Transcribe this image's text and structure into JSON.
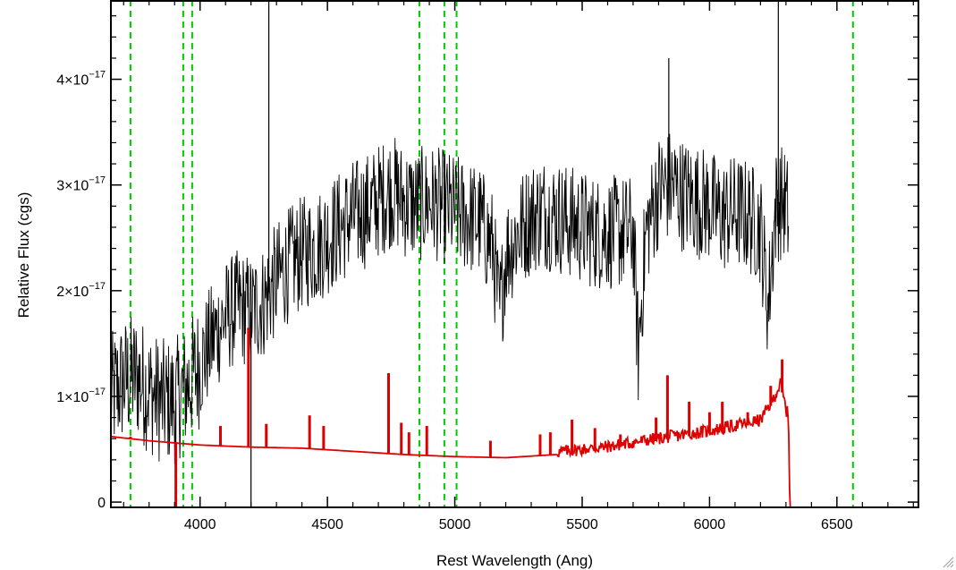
{
  "chart_data": {
    "type": "line",
    "title": "",
    "xlabel": "Rest Wavelength (Ang)",
    "ylabel": "Relative Flux (cgs)",
    "xlim": [
      3650,
      6820
    ],
    "ylim": [
      -0.05,
      4.75
    ],
    "y_scale_exponent": -17,
    "x_ticks": [
      4000,
      4500,
      5000,
      5500,
      6000,
      6500
    ],
    "x_tick_labels": [
      "4000",
      "4500",
      "5000",
      "5500",
      "6000",
      "6500"
    ],
    "y_ticks": [
      0,
      1,
      2,
      3,
      4
    ],
    "y_tick_labels": [
      {
        "value": 0,
        "mantissa": "0",
        "exponent": ""
      },
      {
        "value": 1,
        "mantissa": "1×10",
        "exponent": "−17"
      },
      {
        "value": 2,
        "mantissa": "2×10",
        "exponent": "−17"
      },
      {
        "value": 3,
        "mantissa": "3×10",
        "exponent": "−17"
      },
      {
        "value": 4,
        "mantissa": "4×10",
        "exponent": "−17"
      }
    ],
    "grid": false,
    "reference_lines": {
      "color": "#00cc00",
      "style": "dashed",
      "x": [
        3727,
        3934,
        3969,
        4861,
        4959,
        5007,
        6563
      ]
    },
    "series": [
      {
        "color": "#000000",
        "style": "noisy-line",
        "x": [
          3650,
          3700,
          3750,
          3800,
          3850,
          3900,
          3950,
          4000,
          4050,
          4100,
          4150,
          4200,
          4250,
          4300,
          4350,
          4400,
          4450,
          4500,
          4550,
          4600,
          4650,
          4700,
          4750,
          4800,
          4850,
          4900,
          4950,
          5000,
          5050,
          5100,
          5150,
          5175,
          5200,
          5250,
          5300,
          5350,
          5400,
          5450,
          5500,
          5550,
          5600,
          5650,
          5700,
          5720,
          5750,
          5800,
          5850,
          5900,
          5950,
          6000,
          6050,
          6100,
          6150,
          6200,
          6230,
          6260,
          6290,
          6310
        ],
        "y": [
          1.0,
          1.15,
          1.2,
          1.05,
          0.95,
          0.95,
          1.1,
          1.3,
          1.55,
          1.75,
          1.85,
          1.8,
          1.9,
          2.1,
          2.25,
          2.35,
          2.4,
          2.5,
          2.6,
          2.7,
          2.75,
          2.85,
          2.95,
          2.85,
          2.8,
          2.85,
          2.8,
          2.75,
          2.7,
          2.65,
          2.4,
          1.75,
          2.35,
          2.55,
          2.7,
          2.75,
          2.7,
          2.65,
          2.6,
          2.55,
          2.55,
          2.55,
          2.55,
          1.4,
          2.55,
          2.95,
          3.0,
          2.9,
          2.85,
          2.8,
          2.7,
          2.75,
          2.7,
          2.6,
          1.85,
          2.8,
          2.85,
          2.7
        ],
        "noise_amplitude": 0.55,
        "spikes": [
          {
            "x": 4270,
            "y": 4.75
          },
          {
            "x": 5840,
            "y": 4.2
          },
          {
            "x": 6270,
            "y": 4.75
          },
          {
            "x": 4200,
            "y": -0.05
          },
          {
            "x": 3905,
            "y": 0.3
          }
        ]
      },
      {
        "color": "#dd0000",
        "style": "line",
        "x": [
          3650,
          3800,
          4000,
          4200,
          4400,
          4600,
          4800,
          5000,
          5200,
          5400,
          5600,
          5800,
          6000,
          6200,
          6250,
          6280,
          6300,
          6310,
          6315,
          6820
        ],
        "y": [
          0.62,
          0.58,
          0.54,
          0.52,
          0.51,
          0.48,
          0.45,
          0.43,
          0.42,
          0.45,
          0.5,
          0.58,
          0.65,
          0.75,
          0.95,
          1.1,
          0.85,
          0.8,
          -0.05,
          -0.05
        ],
        "emission_lines": [
          {
            "x": 3727,
            "y": 0.62
          },
          {
            "x": 3905,
            "y": -0.05
          },
          {
            "x": 4080,
            "y": 0.72
          },
          {
            "x": 4190,
            "y": 1.65
          },
          {
            "x": 4260,
            "y": 0.74
          },
          {
            "x": 4430,
            "y": 0.82
          },
          {
            "x": 4485,
            "y": 0.72
          },
          {
            "x": 4740,
            "y": 1.22
          },
          {
            "x": 4790,
            "y": 0.75
          },
          {
            "x": 4820,
            "y": 0.66
          },
          {
            "x": 4890,
            "y": 0.72
          },
          {
            "x": 5140,
            "y": 0.58
          },
          {
            "x": 5335,
            "y": 0.64
          },
          {
            "x": 5375,
            "y": 0.66
          },
          {
            "x": 5460,
            "y": 0.78
          },
          {
            "x": 5550,
            "y": 0.7
          },
          {
            "x": 5650,
            "y": 0.64
          },
          {
            "x": 5790,
            "y": 0.8
          },
          {
            "x": 5835,
            "y": 1.2
          },
          {
            "x": 5920,
            "y": 0.95
          },
          {
            "x": 6000,
            "y": 0.85
          },
          {
            "x": 6050,
            "y": 0.95
          },
          {
            "x": 6150,
            "y": 0.85
          },
          {
            "x": 6240,
            "y": 1.1
          },
          {
            "x": 6285,
            "y": 1.35
          }
        ]
      }
    ]
  }
}
